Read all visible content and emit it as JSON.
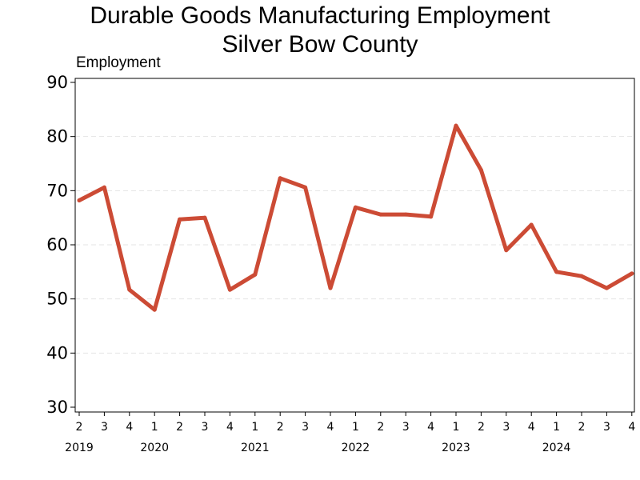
{
  "chart_data": {
    "type": "line",
    "title": "Durable Goods Manufacturing Employment",
    "subtitle": "Silver Bow County",
    "ylabel": "Employment",
    "xlabel": "",
    "ylim": [
      30,
      90
    ],
    "yticks": [
      "30",
      "40",
      "50",
      "60",
      "70",
      "80",
      "90"
    ],
    "grid": true,
    "color": "#cc4b35",
    "categories": [
      "2",
      "3",
      "4",
      "1",
      "2",
      "3",
      "4",
      "1",
      "2",
      "3",
      "4",
      "1",
      "2",
      "3",
      "4",
      "1",
      "2",
      "3",
      "4",
      "1",
      "2",
      "3",
      "4"
    ],
    "years": [
      {
        "label": "2019",
        "start": 0
      },
      {
        "label": "2020",
        "start": 3
      },
      {
        "label": "2021",
        "start": 7
      },
      {
        "label": "2022",
        "start": 11
      },
      {
        "label": "2023",
        "start": 15
      },
      {
        "label": "2024",
        "start": 19
      }
    ],
    "series": [
      {
        "name": "Employment",
        "values": [
          68.2,
          70.6,
          51.7,
          48.0,
          64.7,
          65.0,
          51.7,
          54.5,
          72.3,
          70.6,
          52.0,
          66.9,
          65.6,
          65.6,
          65.2,
          82.0,
          73.8,
          59.0,
          63.7,
          55.0,
          54.2,
          52.0,
          54.7
        ]
      }
    ]
  }
}
